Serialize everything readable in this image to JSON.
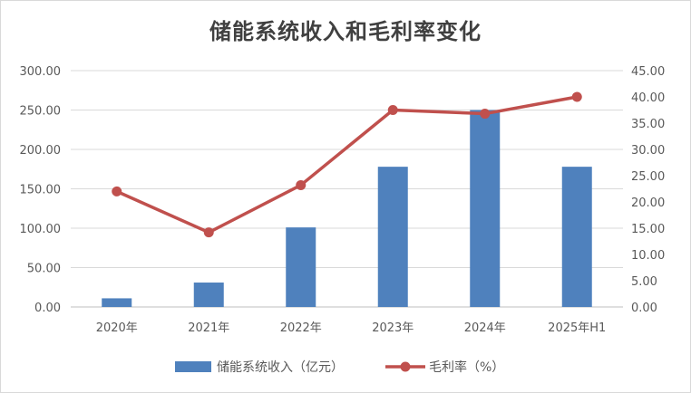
{
  "chart_data": {
    "type": "bar",
    "title": "储能系统收入和毛利率变化",
    "categories": [
      "2020年",
      "2021年",
      "2022年",
      "2023年",
      "2024年",
      "2025年H1"
    ],
    "series": [
      {
        "name": "储能系统收入（亿元）",
        "type": "bar",
        "axis": "left",
        "color": "#4f81bd",
        "values": [
          11.0,
          31.0,
          101.0,
          178.0,
          250.0,
          178.0
        ]
      },
      {
        "name": "毛利率（%）",
        "type": "line",
        "axis": "right",
        "color": "#c0504d",
        "values": [
          22.0,
          14.2,
          23.2,
          37.5,
          36.8,
          40.0
        ]
      }
    ],
    "y_left": {
      "ylim": [
        0,
        300
      ],
      "ticks": [
        "0.00",
        "50.00",
        "100.00",
        "150.00",
        "200.00",
        "250.00",
        "300.00"
      ]
    },
    "y_right": {
      "ylim": [
        0,
        45
      ],
      "ticks": [
        "0.00",
        "5.00",
        "10.00",
        "15.00",
        "20.00",
        "25.00",
        "30.00",
        "35.00",
        "40.00",
        "45.00"
      ]
    },
    "grid": true,
    "legend": "bottom"
  }
}
